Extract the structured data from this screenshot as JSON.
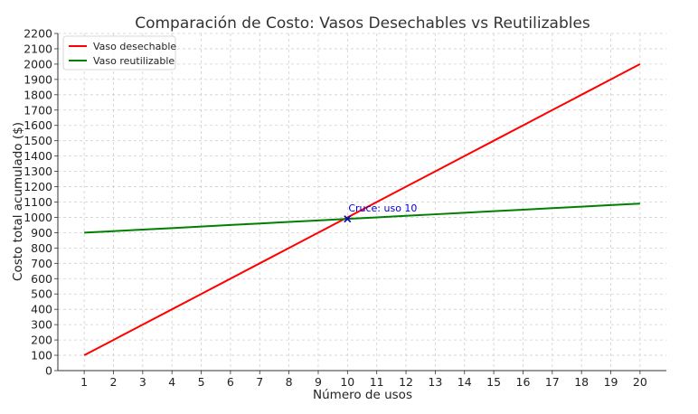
{
  "chart_data": {
    "type": "line",
    "title": "Comparación de Costo: Vasos Desechables vs Reutilizables",
    "xlabel": "Número de usos",
    "ylabel": "Costo total acumulado ($)",
    "x": [
      1,
      2,
      3,
      4,
      5,
      6,
      7,
      8,
      9,
      10,
      11,
      12,
      13,
      14,
      15,
      16,
      17,
      18,
      19,
      20
    ],
    "xlim": [
      0.1,
      20.9
    ],
    "ylim": [
      0,
      2200
    ],
    "xticks": [
      1,
      2,
      3,
      4,
      5,
      6,
      7,
      8,
      9,
      10,
      11,
      12,
      13,
      14,
      15,
      16,
      17,
      18,
      19,
      20
    ],
    "yticks": [
      0,
      100,
      200,
      300,
      400,
      500,
      600,
      700,
      800,
      900,
      1000,
      1100,
      1200,
      1300,
      1400,
      1500,
      1600,
      1700,
      1800,
      1900,
      2000,
      2100,
      2200
    ],
    "grid": true,
    "legend_position": "top-left",
    "series": [
      {
        "name": "Vaso desechable",
        "color": "#ff0000",
        "values": [
          100,
          200,
          300,
          400,
          500,
          600,
          700,
          800,
          900,
          1000,
          1100,
          1200,
          1300,
          1400,
          1500,
          1600,
          1700,
          1800,
          1900,
          2000
        ]
      },
      {
        "name": "Vaso reutilizable",
        "color": "#008000",
        "values": [
          900,
          910,
          920,
          930,
          940,
          950,
          960,
          970,
          980,
          990,
          1000,
          1010,
          1020,
          1030,
          1040,
          1050,
          1060,
          1070,
          1080,
          1090
        ]
      }
    ],
    "annotations": [
      {
        "text": "Cruce: uso 10",
        "x": 10,
        "y": 990,
        "marker": "x",
        "color": "#0000cc"
      }
    ]
  }
}
